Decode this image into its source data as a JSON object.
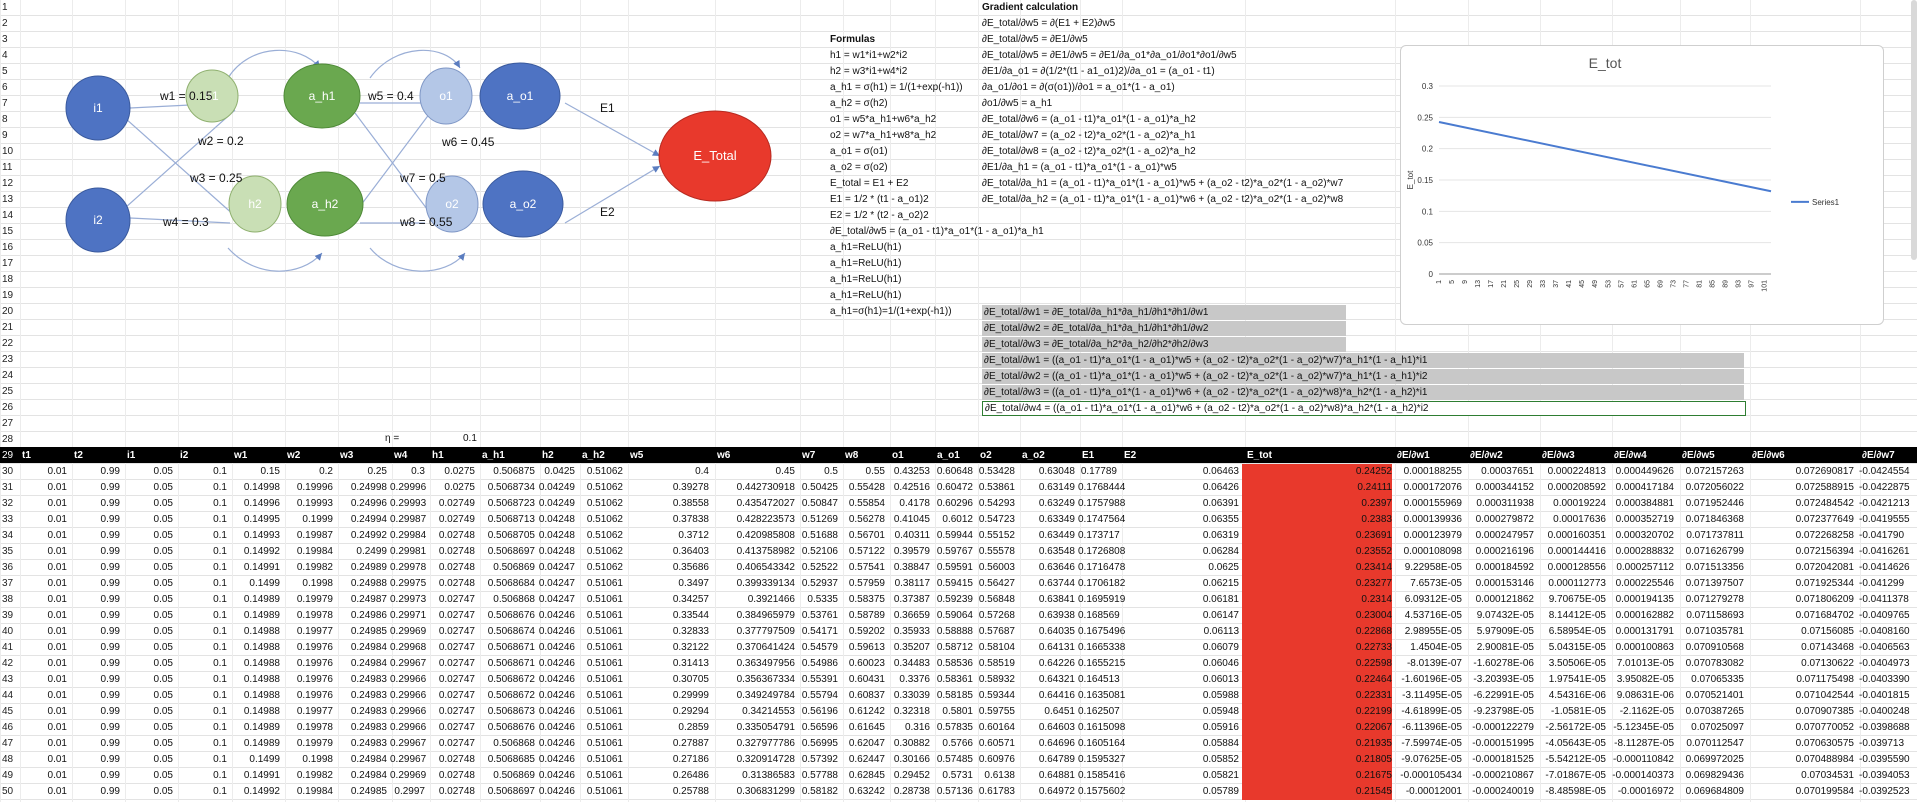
{
  "diagram": {
    "nodes": {
      "i1": "i1",
      "i2": "i2",
      "h1": "h1",
      "h2": "h2",
      "a_h1": "a_h1",
      "a_h2": "a_h2",
      "o1": "o1",
      "o2": "o2",
      "a_o1": "a_o1",
      "a_o2": "a_o2",
      "etotal": "E_Total"
    },
    "weights": {
      "w1": "w1 = 0.15",
      "w2": "w2 = 0.2",
      "w3": "w3 = 0.25",
      "w4": "w4 = 0.3",
      "w5": "w5 = 0.4",
      "w6": "w6 = 0.45",
      "w7": "w7 = 0.5",
      "w8": "w8 = 0.55"
    },
    "errors": {
      "e1": "E1",
      "e2": "E2"
    },
    "colors": {
      "input": "#4e73c3",
      "hidden_light": "#c9dfb5",
      "hidden_dark": "#6aa84f",
      "out_light": "#b4c7e7",
      "etotal": "#e8392c"
    }
  },
  "formulas": {
    "title": "Formulas",
    "lines": [
      "h1 = w1*i1+w2*i2",
      "h2 = w3*i1+w4*i2",
      "a_h1 = σ(h1) = 1/(1+exp(-h1))",
      "a_h2 = σ(h2)",
      "o1 = w5*a_h1+w6*a_h2",
      "o2 = w7*a_h1+w8*a_h2",
      "a_o1 = σ(o1)",
      "a_o2 = σ(o2)",
      "E_total = E1 + E2",
      "E1 = 1/2 * (t1 - a_o1)2",
      "E2 = 1/2 * (t2 - a_o2)2",
      "∂E_total/∂w5 = (a_o1 - t1)*a_o1*(1 - a_o1)*a_h1",
      "a_h1=ReLU(h1)",
      "a_h1=ReLU(h1)",
      "a_h1=ReLU(h1)",
      "a_h1=ReLU(h1)",
      "a_h1=σ(h1)=1/(1+exp(-h1))"
    ]
  },
  "gradient": {
    "title": "Gradient calculation",
    "lines": [
      "∂E_total/∂w5 = ∂(E1 + E2)∂w5",
      "∂E_total/∂w5 = ∂E1/∂w5",
      "∂E_total/∂w5 = ∂E1/∂w5 = ∂E1/∂a_o1*∂a_o1/∂o1*∂o1/∂w5",
      "∂E1/∂a_o1 = ∂(1/2*(t1 - a1_o1)2)/∂a_o1 = (a_o1 - t1)",
      "∂a_o1/∂o1 = ∂(σ(o1))/∂o1 = a_o1*(1 - a_o1)",
      "∂o1/∂w5 = a_h1",
      "∂E_total/∂w6 = (a_o1 - t1)*a_o1*(1 - a_o1)*a_h2",
      "∂E_total/∂w7 = (a_o2 - t2)*a_o2*(1 - a_o2)*a_h1",
      "∂E_total/∂w8 = (a_o2 - t2)*a_o2*(1 - a_o2)*a_h2",
      "∂E1/∂a_h1 = (a_o1 - t1)*a_o1*(1 - a_o1)*w5",
      "∂E_total/∂a_h1 = (a_o1 - t1)*a_o1*(1 - a_o1)*w5 + (a_o2 - t2)*a_o2*(1 - a_o2)*w7",
      "∂E_total/∂a_h2 = (a_o1 - t1)*a_o1*(1 - a_o1)*w6 + (a_o2 - t2)*a_o2*(1 - a_o2)*w8"
    ],
    "boxes_short": [
      "∂E_total/∂w1 = ∂E_total/∂a_h1*∂a_h1/∂h1*∂h1/∂w1",
      "∂E_total/∂w2 = ∂E_total/∂a_h1*∂a_h1/∂h1*∂h1/∂w2",
      "∂E_total/∂w3 = ∂E_total/∂a_h2*∂a_h2/∂h2*∂h2/∂w3"
    ],
    "boxes_long": [
      "∂E_total/∂w1 = ((a_o1 - t1)*a_o1*(1 - a_o1)*w5 + (a_o2 - t2)*a_o2*(1 - a_o2)*w7)*a_h1*(1 - a_h1)*i1",
      "∂E_total/∂w2 = ((a_o1 - t1)*a_o1*(1 - a_o1)*w5 + (a_o2 - t2)*a_o2*(1 - a_o2)*w7)*a_h1*(1 - a_h1)*i2",
      "∂E_total/∂w3 = ((a_o1 - t1)*a_o1*(1 - a_o1)*w6 + (a_o2 - t2)*a_o2*(1 - a_o2)*w8)*a_h2*(1 - a_h2)*i1",
      "∂E_total/∂w4 = ((a_o1 - t1)*a_o1*(1 - a_o1)*w6 + (a_o2 - t2)*a_o2*(1 - a_o2)*w8)*a_h2*(1 - a_h2)*i2"
    ]
  },
  "eta": {
    "label": "η =",
    "value": "0.1"
  },
  "row_numbers": [
    "1",
    "2",
    "3",
    "4",
    "5",
    "6",
    "7",
    "8",
    "9",
    "10",
    "11",
    "12",
    "13",
    "14",
    "15",
    "16",
    "17",
    "18",
    "19",
    "20",
    "21",
    "22",
    "23",
    "24",
    "25",
    "26",
    "27",
    "28",
    "29",
    "30",
    "31",
    "32",
    "33",
    "34",
    "35",
    "36",
    "37",
    "38",
    "39",
    "40",
    "41",
    "42",
    "43",
    "44",
    "45",
    "46",
    "47",
    "48",
    "49",
    "50"
  ],
  "table": {
    "headers": [
      "t1",
      "t2",
      "i1",
      "i2",
      "w1",
      "w2",
      "w3",
      "w4",
      "h1",
      "a_h1",
      "h2",
      "a_h2",
      "w5",
      "w6",
      "w7",
      "w8",
      "o1",
      "a_o1",
      "o2",
      "a_o2",
      "E1",
      "E2",
      "E_tot",
      "∂E/∂w1",
      "∂E/∂w2",
      "∂E/∂w3",
      "∂E/∂w4",
      "∂E/∂w5",
      "∂E/∂w6",
      "∂E/∂w7"
    ],
    "rows": [
      [
        "0.01",
        "0.99",
        "0.05",
        "0.1",
        "0.15",
        "0.2",
        "0.25",
        "0.3",
        "0.0275",
        "0.506875",
        "0.0425",
        "0.51062",
        "0.4",
        "0.45",
        "0.5",
        "0.55",
        "0.43253",
        "0.60648",
        "0.53428",
        "0.63048",
        "0.17789",
        "0.06463",
        "0.24252",
        "0.000188255",
        "0.00037651",
        "0.000224813",
        "0.000449626",
        "0.072157263",
        "0.072690817",
        "-0.0424554"
      ],
      [
        "0.01",
        "0.99",
        "0.05",
        "0.1",
        "0.14998",
        "0.19996",
        "0.24998",
        "0.29996",
        "0.0275",
        "0.5068734",
        "0.04249",
        "0.51062",
        "0.39278",
        "0.442730918",
        "0.50425",
        "0.55428",
        "0.42516",
        "0.60472",
        "0.53861",
        "0.63149",
        "0.1768444",
        "0.06426",
        "0.24111",
        "0.000172076",
        "0.000344152",
        "0.000208592",
        "0.000417184",
        "0.072056022",
        "0.072588915",
        "-0.0422875"
      ],
      [
        "0.01",
        "0.99",
        "0.05",
        "0.1",
        "0.14996",
        "0.19993",
        "0.24996",
        "0.29993",
        "0.02749",
        "0.5068723",
        "0.04249",
        "0.51062",
        "0.38558",
        "0.435472027",
        "0.50847",
        "0.55854",
        "0.4178",
        "0.60296",
        "0.54293",
        "0.63249",
        "0.1757988",
        "0.06391",
        "0.2397",
        "0.000155969",
        "0.000311938",
        "0.00019224",
        "0.000384881",
        "0.071952446",
        "0.072484542",
        "-0.0421213"
      ],
      [
        "0.01",
        "0.99",
        "0.05",
        "0.1",
        "0.14995",
        "0.1999",
        "0.24994",
        "0.29987",
        "0.02749",
        "0.5068713",
        "0.04248",
        "0.51062",
        "0.37838",
        "0.428223573",
        "0.51269",
        "0.56278",
        "0.41045",
        "0.6012",
        "0.54723",
        "0.63349",
        "0.1747564",
        "0.06355",
        "0.2383",
        "0.000139936",
        "0.000279872",
        "0.00017636",
        "0.000352719",
        "0.071846368",
        "0.072377649",
        "-0.0419555"
      ],
      [
        "0.01",
        "0.99",
        "0.05",
        "0.1",
        "0.14993",
        "0.19987",
        "0.24992",
        "0.29984",
        "0.02748",
        "0.5068705",
        "0.04248",
        "0.51062",
        "0.3712",
        "0.420985808",
        "0.51688",
        "0.56701",
        "0.40311",
        "0.59944",
        "0.55152",
        "0.63449",
        "0.173717",
        "0.06319",
        "0.23691",
        "0.000123979",
        "0.000247957",
        "0.000160351",
        "0.000320702",
        "0.071737811",
        "0.072268258",
        "-0.041790"
      ],
      [
        "0.01",
        "0.99",
        "0.05",
        "0.1",
        "0.14992",
        "0.19984",
        "0.2499",
        "0.29981",
        "0.02748",
        "0.5068697",
        "0.04248",
        "0.51062",
        "0.36403",
        "0.413758982",
        "0.52106",
        "0.57122",
        "0.39579",
        "0.59767",
        "0.55578",
        "0.63548",
        "0.1726808",
        "0.06284",
        "0.23552",
        "0.000108098",
        "0.000216196",
        "0.000144416",
        "0.000288832",
        "0.071626799",
        "0.072156394",
        "-0.0416261"
      ],
      [
        "0.01",
        "0.99",
        "0.05",
        "0.1",
        "0.14991",
        "0.19982",
        "0.24989",
        "0.29978",
        "0.02748",
        "0.506869",
        "0.04247",
        "0.51062",
        "0.35686",
        "0.406543342",
        "0.52522",
        "0.57541",
        "0.38847",
        "0.59591",
        "0.56003",
        "0.63646",
        "0.1716478",
        "0.0625",
        "0.23414",
        "9.22958E-05",
        "0.000184592",
        "0.000128556",
        "0.000257112",
        "0.071513356",
        "0.072042081",
        "-0.0414626"
      ],
      [
        "0.01",
        "0.99",
        "0.05",
        "0.1",
        "0.1499",
        "0.1998",
        "0.24988",
        "0.29975",
        "0.02748",
        "0.5068684",
        "0.04247",
        "0.51061",
        "0.3497",
        "0.399339134",
        "0.52937",
        "0.57959",
        "0.38117",
        "0.59415",
        "0.56427",
        "0.63744",
        "0.1706182",
        "0.06215",
        "0.23277",
        "7.6573E-05",
        "0.000153146",
        "0.000112773",
        "0.000225546",
        "0.071397507",
        "0.071925344",
        "-0.041299"
      ],
      [
        "0.01",
        "0.99",
        "0.05",
        "0.1",
        "0.14989",
        "0.19979",
        "0.24987",
        "0.29973",
        "0.02747",
        "0.506868",
        "0.04247",
        "0.51061",
        "0.34257",
        "0.3921466",
        "0.5335",
        "0.58375",
        "0.37387",
        "0.59239",
        "0.56848",
        "0.63841",
        "0.1695919",
        "0.06181",
        "0.2314",
        "6.09312E-05",
        "0.000121862",
        "9.70675E-05",
        "0.000194135",
        "0.071279278",
        "0.071806209",
        "-0.0411378"
      ],
      [
        "0.01",
        "0.99",
        "0.05",
        "0.1",
        "0.14989",
        "0.19978",
        "0.24986",
        "0.29971",
        "0.02747",
        "0.5068676",
        "0.04246",
        "0.51061",
        "0.33544",
        "0.384965979",
        "0.53761",
        "0.58789",
        "0.36659",
        "0.59064",
        "0.57268",
        "0.63938",
        "0.168569",
        "0.06147",
        "0.23004",
        "4.53716E-05",
        "9.07432E-05",
        "8.14412E-05",
        "0.000162882",
        "0.071158693",
        "0.071684702",
        "-0.0409765"
      ],
      [
        "0.01",
        "0.99",
        "0.05",
        "0.1",
        "0.14988",
        "0.19977",
        "0.24985",
        "0.29969",
        "0.02747",
        "0.5068674",
        "0.04246",
        "0.51061",
        "0.32833",
        "0.377797509",
        "0.54171",
        "0.59202",
        "0.35933",
        "0.58888",
        "0.57687",
        "0.64035",
        "0.1675496",
        "0.06113",
        "0.22868",
        "2.98955E-05",
        "5.97909E-05",
        "6.58954E-05",
        "0.000131791",
        "0.071035781",
        "0.07156085",
        "-0.0408160"
      ],
      [
        "0.01",
        "0.99",
        "0.05",
        "0.1",
        "0.14988",
        "0.19976",
        "0.24984",
        "0.29968",
        "0.02747",
        "0.5068671",
        "0.04246",
        "0.51061",
        "0.32122",
        "0.370641424",
        "0.54579",
        "0.59613",
        "0.35207",
        "0.58712",
        "0.58104",
        "0.64131",
        "0.1665338",
        "0.06079",
        "0.22733",
        "1.4504E-05",
        "2.90081E-05",
        "5.04315E-05",
        "0.000100863",
        "0.070910568",
        "0.07143468",
        "-0.0406563"
      ],
      [
        "0.01",
        "0.99",
        "0.05",
        "0.1",
        "0.14988",
        "0.19976",
        "0.24984",
        "0.29967",
        "0.02747",
        "0.5068671",
        "0.04246",
        "0.51061",
        "0.31413",
        "0.363497956",
        "0.54986",
        "0.60023",
        "0.34483",
        "0.58536",
        "0.58519",
        "0.64226",
        "0.1655215",
        "0.06046",
        "0.22598",
        "-8.0139E-07",
        "-1.60278E-06",
        "3.50506E-05",
        "7.01013E-05",
        "0.070783082",
        "0.07130622",
        "-0.0404973"
      ],
      [
        "0.01",
        "0.99",
        "0.05",
        "0.1",
        "0.14988",
        "0.19976",
        "0.24983",
        "0.29966",
        "0.02747",
        "0.5068672",
        "0.04246",
        "0.51061",
        "0.30705",
        "0.356367334",
        "0.55391",
        "0.60431",
        "0.3376",
        "0.58361",
        "0.58932",
        "0.64321",
        "0.164513",
        "0.06013",
        "0.22464",
        "-1.60196E-05",
        "-3.20393E-05",
        "1.97541E-05",
        "3.95082E-05",
        "0.07065335",
        "0.071175498",
        "-0.0403390"
      ],
      [
        "0.01",
        "0.99",
        "0.05",
        "0.1",
        "0.14988",
        "0.19976",
        "0.24983",
        "0.29966",
        "0.02747",
        "0.5068672",
        "0.04246",
        "0.51061",
        "0.29999",
        "0.349249784",
        "0.55794",
        "0.60837",
        "0.33039",
        "0.58185",
        "0.59344",
        "0.64416",
        "0.1635081",
        "0.05988",
        "0.22331",
        "-3.11495E-05",
        "-6.22991E-05",
        "4.54316E-06",
        "9.08631E-06",
        "0.070521401",
        "0.071042544",
        "-0.0401815"
      ],
      [
        "0.01",
        "0.99",
        "0.05",
        "0.1",
        "0.14988",
        "0.19977",
        "0.24983",
        "0.29966",
        "0.02747",
        "0.5068673",
        "0.04246",
        "0.51061",
        "0.29294",
        "0.34214553",
        "0.56196",
        "0.61242",
        "0.32318",
        "0.5801",
        "0.59755",
        "0.6451",
        "0.162507",
        "0.05948",
        "0.22199",
        "-4.61899E-05",
        "-9.23798E-05",
        "-1.0581E-05",
        "-2.1162E-05",
        "0.070387265",
        "0.070907385",
        "-0.0400248"
      ],
      [
        "0.01",
        "0.99",
        "0.05",
        "0.1",
        "0.14989",
        "0.19978",
        "0.24983",
        "0.29966",
        "0.02747",
        "0.5068676",
        "0.04246",
        "0.51061",
        "0.2859",
        "0.335054791",
        "0.56596",
        "0.61645",
        "0.316",
        "0.57835",
        "0.60164",
        "0.64603",
        "0.1615098",
        "0.05916",
        "0.22067",
        "-6.11396E-05",
        "-0.000122279",
        "-2.56172E-05",
        "-5.12345E-05",
        "0.07025097",
        "0.070770052",
        "-0.0398688"
      ],
      [
        "0.01",
        "0.99",
        "0.05",
        "0.1",
        "0.14989",
        "0.19979",
        "0.24983",
        "0.29967",
        "0.02747",
        "0.506868",
        "0.04246",
        "0.51061",
        "0.27887",
        "0.327977786",
        "0.56995",
        "0.62047",
        "0.30882",
        "0.5766",
        "0.60571",
        "0.64696",
        "0.1605164",
        "0.05884",
        "0.21935",
        "-7.59974E-05",
        "-0.000151995",
        "-4.05643E-05",
        "-8.11287E-05",
        "0.070112547",
        "0.070630575",
        "-0.039713"
      ],
      [
        "0.01",
        "0.99",
        "0.05",
        "0.1",
        "0.1499",
        "0.1998",
        "0.24984",
        "0.29967",
        "0.02748",
        "0.5068685",
        "0.04246",
        "0.51061",
        "0.27186",
        "0.320914728",
        "0.57392",
        "0.62447",
        "0.30166",
        "0.57485",
        "0.60976",
        "0.64789",
        "0.1595327",
        "0.05852",
        "0.21805",
        "-9.07625E-05",
        "-0.000181525",
        "-5.54212E-05",
        "-0.000110842",
        "0.069972025",
        "0.070488984",
        "-0.0395590"
      ],
      [
        "0.01",
        "0.99",
        "0.05",
        "0.1",
        "0.14991",
        "0.19982",
        "0.24984",
        "0.29969",
        "0.02748",
        "0.506869",
        "0.04246",
        "0.51061",
        "0.26486",
        "0.31386583",
        "0.57788",
        "0.62845",
        "0.29452",
        "0.5731",
        "0.6138",
        "0.64881",
        "0.1585416",
        "0.05821",
        "0.21675",
        "-0.000105434",
        "-0.000210867",
        "-7.01867E-05",
        "-0.000140373",
        "0.069829436",
        "0.07034531",
        "-0.0394053"
      ],
      [
        "0.01",
        "0.99",
        "0.05",
        "0.1",
        "0.14992",
        "0.19984",
        "0.24985",
        "0.2997",
        "0.02748",
        "0.5068697",
        "0.04246",
        "0.51061",
        "0.25788",
        "0.306831299",
        "0.58182",
        "0.63242",
        "0.28738",
        "0.57136",
        "0.61783",
        "0.64972",
        "0.1575602",
        "0.05789",
        "0.21545",
        "-0.00012001",
        "-0.000240019",
        "-8.48598E-05",
        "-0.00016972",
        "0.069684809",
        "0.070199584",
        "-0.0392523"
      ]
    ]
  },
  "chart_data": {
    "type": "line",
    "title": "E_tot",
    "ylabel": "E_tot",
    "xlabel": "",
    "ylim": [
      0,
      0.3
    ],
    "yticks": [
      "0",
      "0.05",
      "0.1",
      "0.15",
      "0.2",
      "0.25",
      "0.3"
    ],
    "xticks": [
      "1",
      "5",
      "9",
      "13",
      "17",
      "21",
      "25",
      "29",
      "33",
      "37",
      "41",
      "45",
      "49",
      "53",
      "57",
      "61",
      "65",
      "69",
      "73",
      "77",
      "81",
      "85",
      "89",
      "93",
      "97",
      "101"
    ],
    "x_range": [
      1,
      103
    ],
    "legend_placement": "right",
    "series": [
      {
        "name": "Series1",
        "x": [
          1,
          103
        ],
        "y": [
          0.2425,
          0.132
        ],
        "color": "#4a7bd0"
      }
    ]
  }
}
